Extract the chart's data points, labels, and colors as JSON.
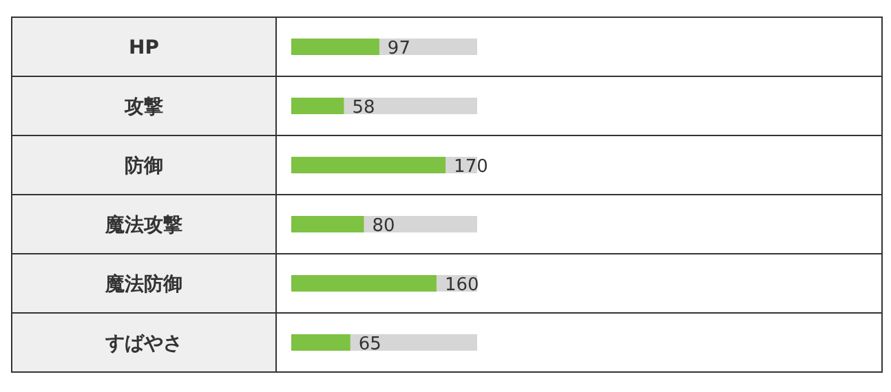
{
  "chart_data": {
    "type": "bar",
    "orientation": "horizontal",
    "categories": [
      "HP",
      "攻撃",
      "防御",
      "魔法攻撃",
      "魔法防御",
      "すばやさ"
    ],
    "values": [
      97,
      58,
      170,
      80,
      160,
      65
    ],
    "color": "#7dc242",
    "data_labels": true
  }
}
